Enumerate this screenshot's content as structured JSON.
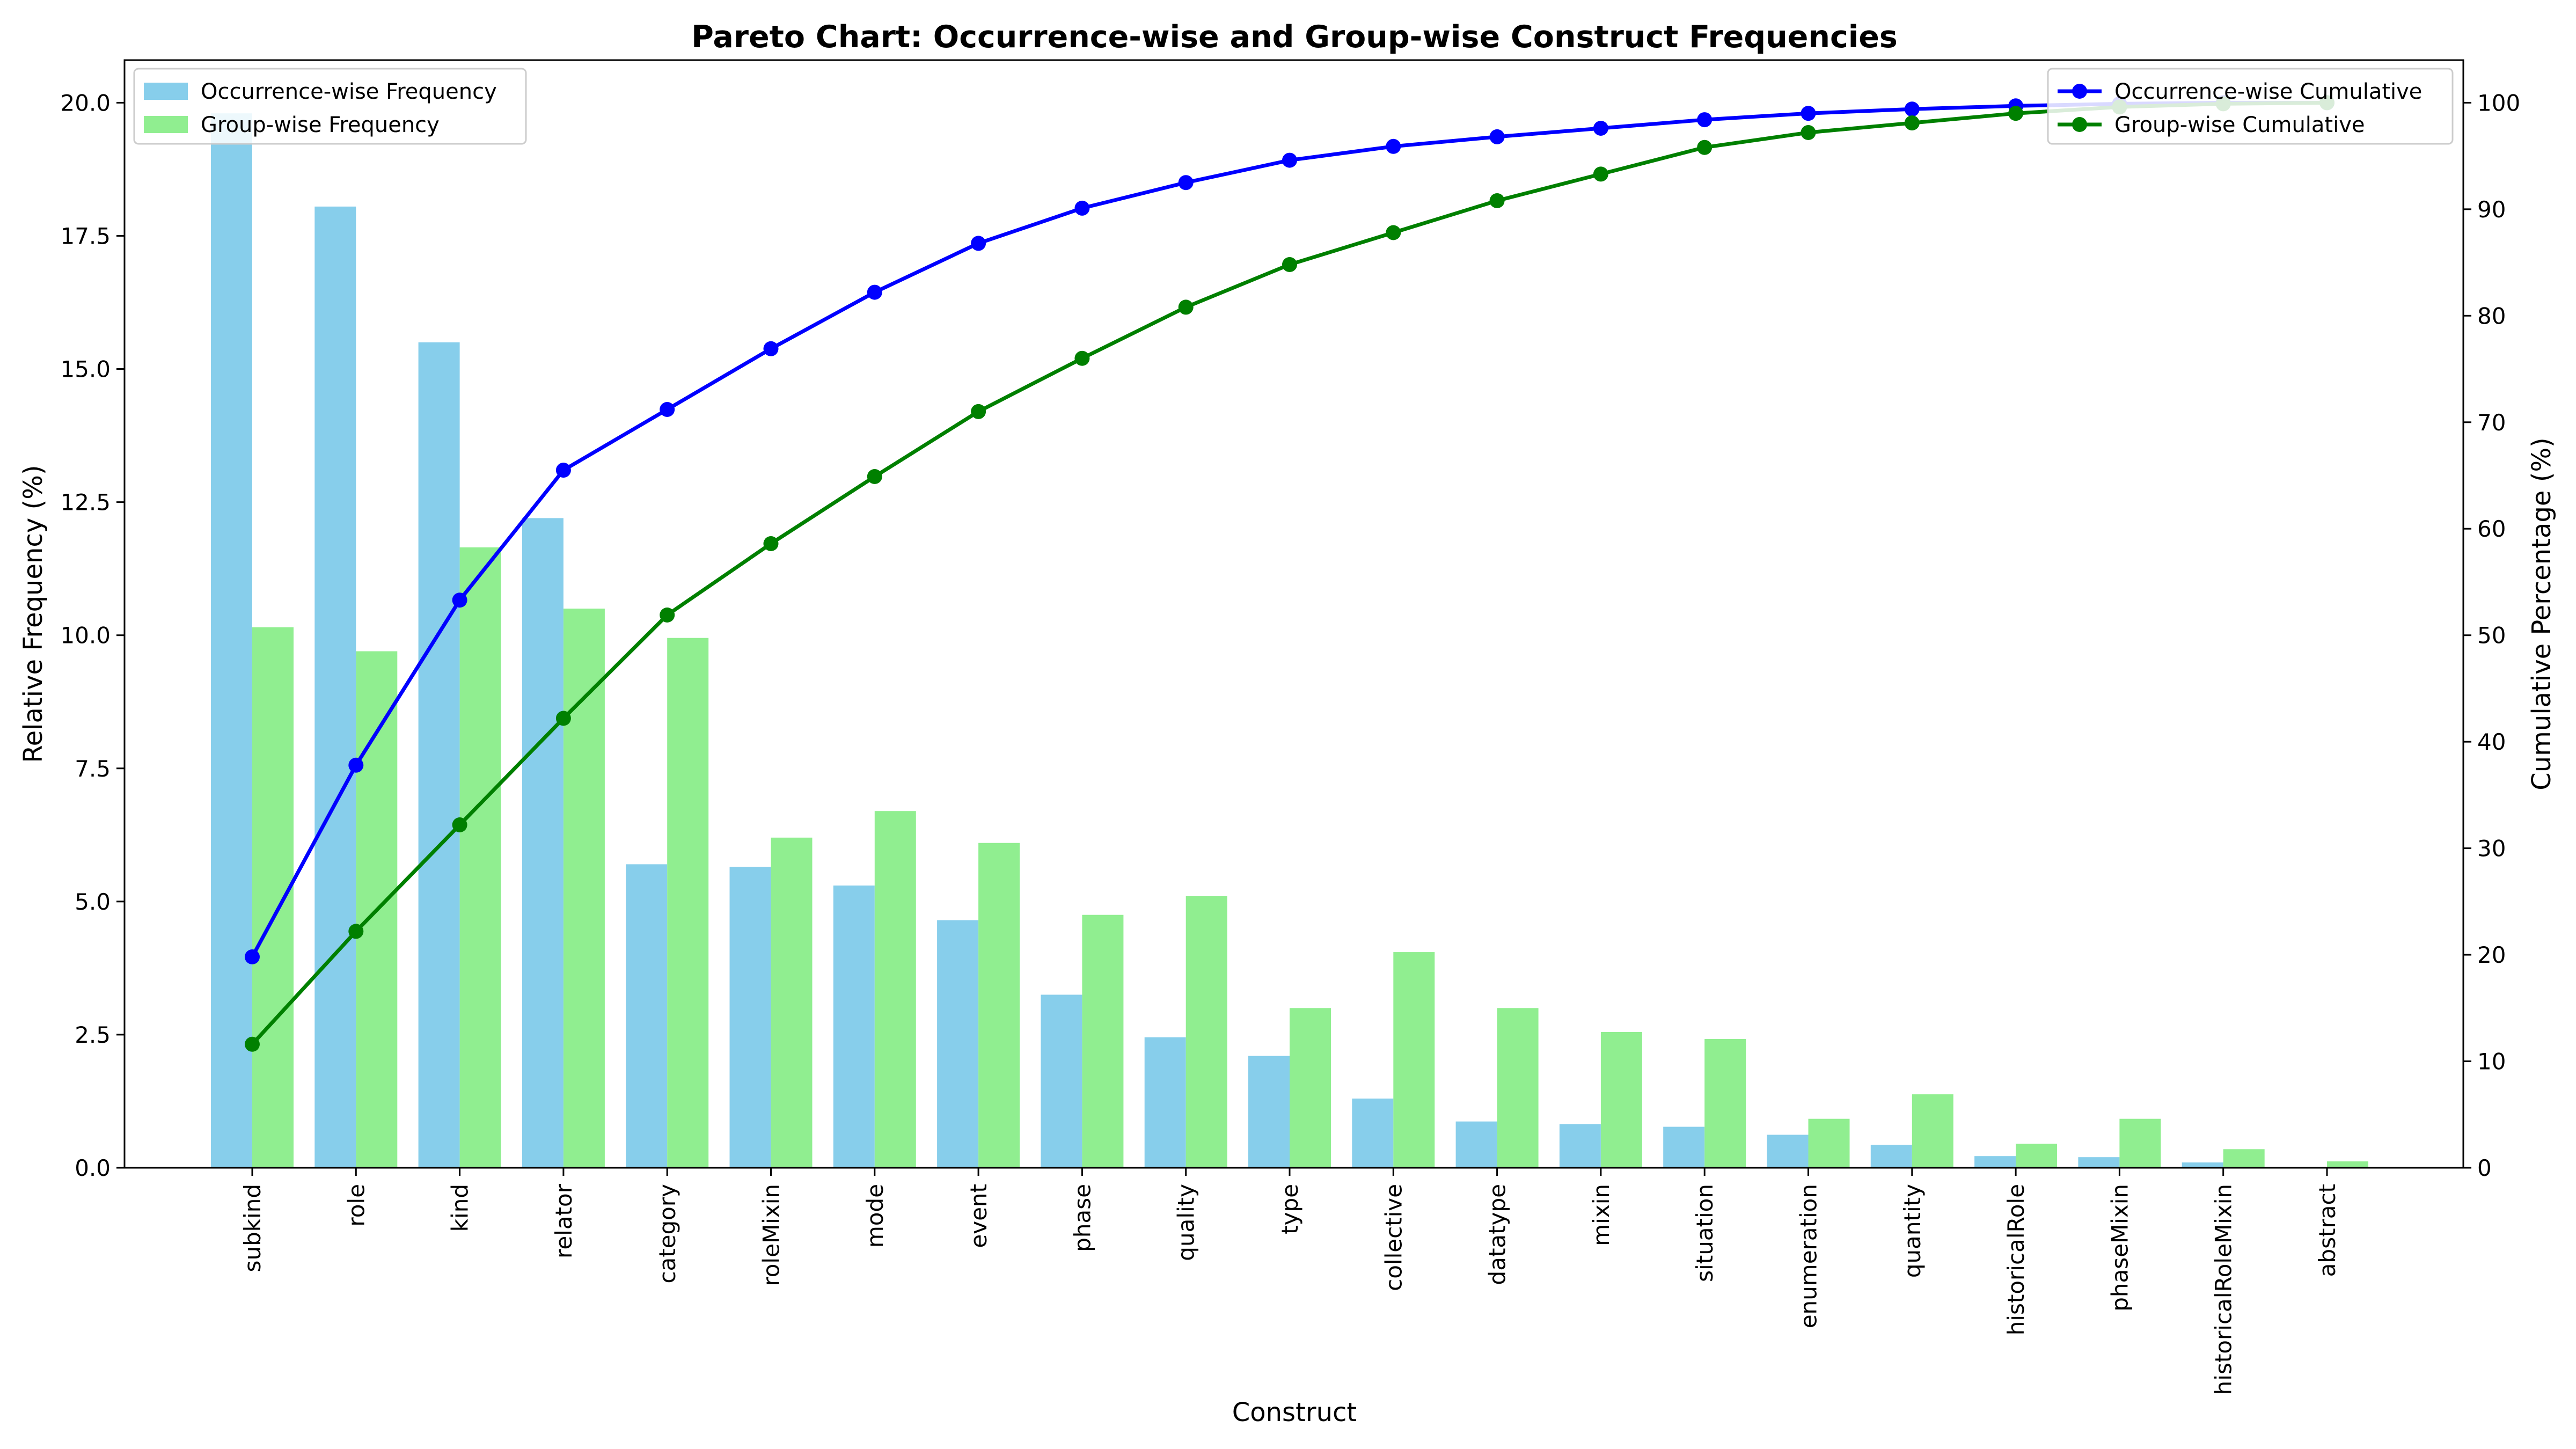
{
  "chart_data": {
    "type": "bar",
    "title": "Pareto Chart: Occurrence-wise and Group-wise Construct Frequencies",
    "xlabel": "Construct",
    "ylabel": "Relative Frequency (%)",
    "y2label": "Cumulative Percentage (%)",
    "ylim": [
      0,
      20.8
    ],
    "y2lim": [
      0,
      104
    ],
    "yticks": [
      "0.0",
      "2.5",
      "5.0",
      "7.5",
      "10.0",
      "12.5",
      "15.0",
      "17.5",
      "20.0"
    ],
    "y2ticks": [
      "0",
      "10",
      "20",
      "30",
      "40",
      "50",
      "60",
      "70",
      "80",
      "90",
      "100"
    ],
    "categories": [
      "subkind",
      "role",
      "kind",
      "relator",
      "category",
      "roleMixin",
      "mode",
      "event",
      "phase",
      "quality",
      "type",
      "collective",
      "datatype",
      "mixin",
      "situation",
      "enumeration",
      "quantity",
      "historicalRole",
      "phaseMixin",
      "historicalRoleMixin",
      "abstract"
    ],
    "series": [
      {
        "name": "Occurrence-wise Frequency",
        "kind": "bar",
        "color": "#87CEEB",
        "values": [
          19.8,
          18.05,
          15.5,
          12.2,
          5.7,
          5.65,
          5.3,
          4.65,
          3.25,
          2.45,
          2.1,
          1.3,
          0.87,
          0.82,
          0.77,
          0.62,
          0.43,
          0.22,
          0.2,
          0.1,
          0.0
        ]
      },
      {
        "name": "Group-wise Frequency",
        "kind": "bar",
        "color": "#90EE90",
        "values": [
          10.15,
          9.7,
          11.65,
          10.5,
          9.95,
          6.2,
          6.7,
          6.1,
          4.75,
          5.1,
          3.0,
          4.05,
          3.0,
          2.55,
          2.42,
          0.92,
          1.38,
          0.45,
          0.92,
          0.35,
          0.12
        ]
      },
      {
        "name": "Occurrence-wise Cumulative",
        "kind": "line",
        "axis": "right",
        "color": "#0000FF",
        "values": [
          19.8,
          37.8,
          53.3,
          65.5,
          71.2,
          76.9,
          82.2,
          86.8,
          90.1,
          92.5,
          94.6,
          95.9,
          96.8,
          97.6,
          98.4,
          99.0,
          99.4,
          99.7,
          99.9,
          100.0,
          100.0
        ]
      },
      {
        "name": "Group-wise Cumulative",
        "kind": "line",
        "axis": "right",
        "color": "#008000",
        "values": [
          11.6,
          22.2,
          32.2,
          42.2,
          51.9,
          58.6,
          64.9,
          71.0,
          76.0,
          80.8,
          84.8,
          87.8,
          90.8,
          93.3,
          95.8,
          97.2,
          98.1,
          99.0,
          99.6,
          99.9,
          100.0
        ]
      }
    ],
    "legend_left": "top-left",
    "legend_right": "top-right",
    "grid": false
  }
}
